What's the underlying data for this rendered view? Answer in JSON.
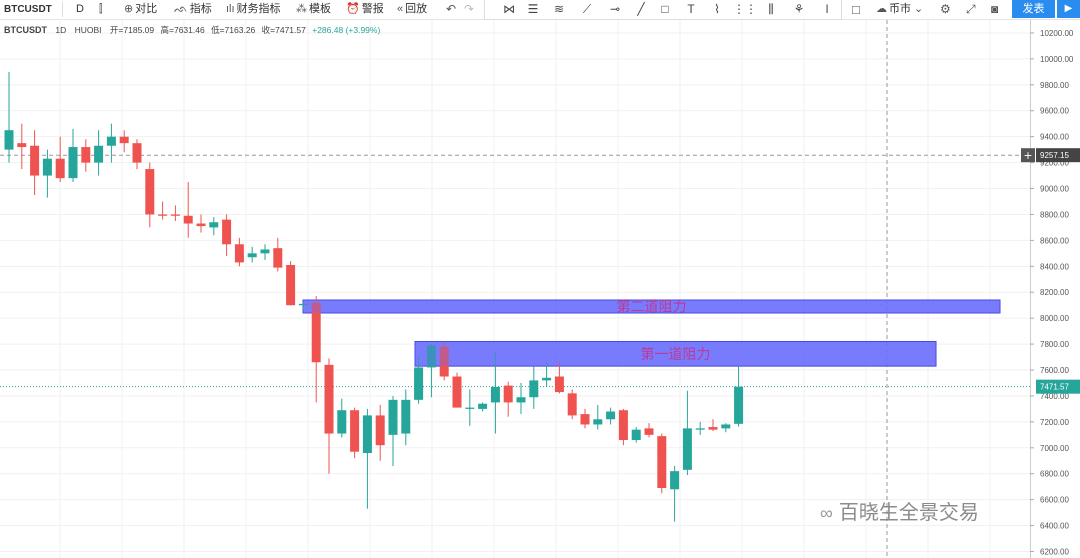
{
  "toolbar": {
    "symbol": "BTCUSDT",
    "interval": "D",
    "compare": "对比",
    "indicators": "指标",
    "financial_indicators": "财务指标",
    "templates": "模板",
    "alerts": "警报",
    "replay": "回放",
    "currency": "币市",
    "publish": "发表"
  },
  "legend": {
    "symbol": "BTCUSDT",
    "interval": "1D",
    "exchange": "HUOBI",
    "open": "开=7185.09",
    "high": "高=7631.46",
    "low": "低=7163.26",
    "close": "收=7471.57",
    "change": "+286.48 (+3.99%)"
  },
  "watermark": "百晓生全景交易",
  "colors": {
    "up": "#26a69a",
    "down": "#ef5350",
    "zone": "#6a6dfb",
    "zone_text": "#e91e63",
    "accent": "#2b8cf0"
  },
  "chart_data": {
    "type": "candlestick",
    "y_axis": {
      "min": 6150,
      "max": 10300,
      "ticks": [
        6200,
        6400,
        6600,
        6800,
        7000,
        7200,
        7400,
        7600,
        7800,
        8000,
        8200,
        8400,
        8600,
        8800,
        9000,
        9200,
        9400,
        9600,
        9800,
        10000,
        10200
      ]
    },
    "crosshair_price": "9257.15",
    "last_price": "7471.57",
    "grid": true,
    "zones": [
      {
        "label": "第二道阻力",
        "from": 8040,
        "to": 8140
      },
      {
        "label": "第一道阻力",
        "from": 7630,
        "to": 7820
      }
    ],
    "candles": [
      {
        "o": 9300,
        "h": 9900,
        "l": 9200,
        "c": 9450
      },
      {
        "o": 9350,
        "h": 9500,
        "l": 9150,
        "c": 9320
      },
      {
        "o": 9330,
        "h": 9450,
        "l": 8950,
        "c": 9100
      },
      {
        "o": 9100,
        "h": 9300,
        "l": 8930,
        "c": 9230
      },
      {
        "o": 9230,
        "h": 9400,
        "l": 9050,
        "c": 9080
      },
      {
        "o": 9080,
        "h": 9460,
        "l": 9050,
        "c": 9320
      },
      {
        "o": 9320,
        "h": 9380,
        "l": 9130,
        "c": 9200
      },
      {
        "o": 9200,
        "h": 9450,
        "l": 9100,
        "c": 9330
      },
      {
        "o": 9330,
        "h": 9500,
        "l": 9200,
        "c": 9400
      },
      {
        "o": 9400,
        "h": 9450,
        "l": 9280,
        "c": 9350
      },
      {
        "o": 9350,
        "h": 9380,
        "l": 9150,
        "c": 9200
      },
      {
        "o": 9150,
        "h": 9200,
        "l": 8700,
        "c": 8800
      },
      {
        "o": 8800,
        "h": 8900,
        "l": 8760,
        "c": 8790
      },
      {
        "o": 8800,
        "h": 8870,
        "l": 8750,
        "c": 8790
      },
      {
        "o": 8790,
        "h": 9050,
        "l": 8620,
        "c": 8730
      },
      {
        "o": 8730,
        "h": 8800,
        "l": 8660,
        "c": 8710
      },
      {
        "o": 8700,
        "h": 8780,
        "l": 8640,
        "c": 8740
      },
      {
        "o": 8760,
        "h": 8800,
        "l": 8480,
        "c": 8570
      },
      {
        "o": 8570,
        "h": 8620,
        "l": 8400,
        "c": 8430
      },
      {
        "o": 8470,
        "h": 8550,
        "l": 8430,
        "c": 8500
      },
      {
        "o": 8500,
        "h": 8570,
        "l": 8450,
        "c": 8530
      },
      {
        "o": 8540,
        "h": 8620,
        "l": 8360,
        "c": 8390
      },
      {
        "o": 8410,
        "h": 8440,
        "l": 8100,
        "c": 8100
      },
      {
        "o": 8100,
        "h": 8130,
        "l": 8060,
        "c": 8110
      },
      {
        "o": 8120,
        "h": 8170,
        "l": 7350,
        "c": 7660
      },
      {
        "o": 7640,
        "h": 7690,
        "l": 6800,
        "c": 7110
      },
      {
        "o": 7110,
        "h": 7380,
        "l": 7080,
        "c": 7290
      },
      {
        "o": 7290,
        "h": 7310,
        "l": 6920,
        "c": 6970
      },
      {
        "o": 6960,
        "h": 7300,
        "l": 6530,
        "c": 7250
      },
      {
        "o": 7250,
        "h": 7330,
        "l": 6900,
        "c": 7020
      },
      {
        "o": 7100,
        "h": 7400,
        "l": 6860,
        "c": 7370
      },
      {
        "o": 7110,
        "h": 7450,
        "l": 7020,
        "c": 7370
      },
      {
        "o": 7370,
        "h": 7710,
        "l": 7340,
        "c": 7620
      },
      {
        "o": 7620,
        "h": 7800,
        "l": 7390,
        "c": 7790
      },
      {
        "o": 7780,
        "h": 7820,
        "l": 7520,
        "c": 7550
      },
      {
        "o": 7550,
        "h": 7580,
        "l": 7350,
        "c": 7310
      },
      {
        "o": 7300,
        "h": 7450,
        "l": 7170,
        "c": 7310
      },
      {
        "o": 7300,
        "h": 7350,
        "l": 7280,
        "c": 7340
      },
      {
        "o": 7350,
        "h": 7740,
        "l": 7110,
        "c": 7470
      },
      {
        "o": 7480,
        "h": 7510,
        "l": 7240,
        "c": 7350
      },
      {
        "o": 7350,
        "h": 7500,
        "l": 7260,
        "c": 7390
      },
      {
        "o": 7390,
        "h": 7630,
        "l": 7300,
        "c": 7520
      },
      {
        "o": 7520,
        "h": 7660,
        "l": 7470,
        "c": 7540
      },
      {
        "o": 7550,
        "h": 7660,
        "l": 7420,
        "c": 7430
      },
      {
        "o": 7420,
        "h": 7450,
        "l": 7220,
        "c": 7250
      },
      {
        "o": 7260,
        "h": 7300,
        "l": 7150,
        "c": 7180
      },
      {
        "o": 7180,
        "h": 7330,
        "l": 7140,
        "c": 7220
      },
      {
        "o": 7220,
        "h": 7310,
        "l": 7180,
        "c": 7280
      },
      {
        "o": 7290,
        "h": 7300,
        "l": 7020,
        "c": 7060
      },
      {
        "o": 7060,
        "h": 7160,
        "l": 7040,
        "c": 7140
      },
      {
        "o": 7150,
        "h": 7190,
        "l": 7080,
        "c": 7100
      },
      {
        "o": 7090,
        "h": 7110,
        "l": 6650,
        "c": 6690
      },
      {
        "o": 6680,
        "h": 6860,
        "l": 6430,
        "c": 6820
      },
      {
        "o": 6830,
        "h": 7440,
        "l": 6790,
        "c": 7150
      },
      {
        "o": 7140,
        "h": 7200,
        "l": 7100,
        "c": 7150
      },
      {
        "o": 7160,
        "h": 7220,
        "l": 7130,
        "c": 7140
      },
      {
        "o": 7150,
        "h": 7190,
        "l": 7120,
        "c": 7180
      },
      {
        "o": 7185.09,
        "h": 7631.46,
        "l": 7163.26,
        "c": 7471.57
      }
    ]
  }
}
